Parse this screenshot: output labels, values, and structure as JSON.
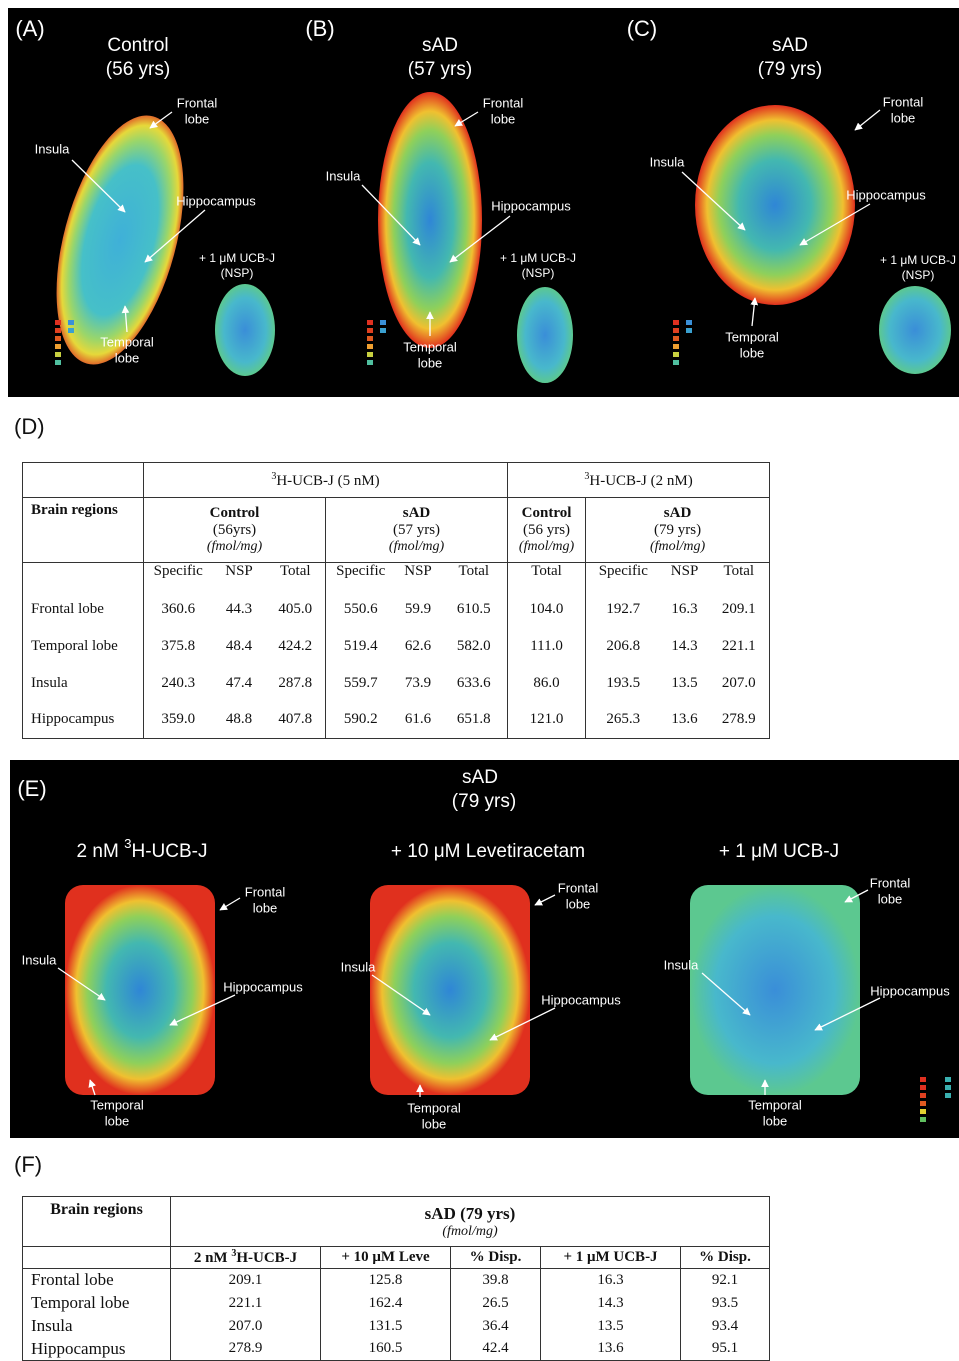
{
  "panels_top": [
    {
      "label": "(A)",
      "title": [
        "Control",
        "(56 yrs)"
      ],
      "frontal": [
        "Frontal",
        "lobe"
      ],
      "insula": "Insula",
      "hippocampus": "Hippocampus",
      "temporal": [
        "Temporal",
        "lobe"
      ],
      "nsp": [
        "+ 1 μM UCB-J",
        "(NSP)"
      ]
    },
    {
      "label": "(B)",
      "title": [
        "sAD",
        "(57 yrs)"
      ],
      "frontal": [
        "Frontal",
        "lobe"
      ],
      "insula": "Insula",
      "hippocampus": "Hippocampus",
      "temporal": [
        "Temporal",
        "lobe"
      ],
      "nsp": [
        "+ 1 μM UCB-J",
        "(NSP)"
      ]
    },
    {
      "label": "(C)",
      "title": [
        "sAD",
        "(79 yrs)"
      ],
      "frontal": [
        "Frontal",
        "lobe"
      ],
      "insula": "Insula",
      "hippocampus": "Hippocampus",
      "temporal": [
        "Temporal",
        "lobe"
      ],
      "nsp": [
        "+ 1 μM UCB-J",
        "(NSP)"
      ]
    }
  ],
  "panel_d": {
    "label": "(D)",
    "group_headers": [
      {
        "sup": "3",
        "text": "H-UCB-J (5 nM)"
      },
      {
        "sup": "3",
        "text": "H-UCB-J (2 nM)"
      }
    ],
    "row_header": "Brain regions",
    "subgroups": [
      {
        "name": "Control",
        "age": "(56yrs)",
        "unit": "(fmol/mg)"
      },
      {
        "name": "sAD",
        "age": "(57 yrs)",
        "unit": "(fmol/mg)"
      },
      {
        "name": "Control",
        "age": "(56 yrs)",
        "unit": "(fmol/mg)"
      },
      {
        "name": "sAD",
        "age": "(79 yrs)",
        "unit": "(fmol/mg)"
      }
    ],
    "columns": [
      "Specific",
      "NSP",
      "Total",
      "Specific",
      "NSP",
      "Total",
      "Total",
      "Specific",
      "NSP",
      "Total"
    ],
    "rows": [
      {
        "region": "Frontal lobe",
        "values": [
          "360.6",
          "44.3",
          "405.0",
          "550.6",
          "59.9",
          "610.5",
          "104.0",
          "192.7",
          "16.3",
          "209.1"
        ]
      },
      {
        "region": "Temporal lobe",
        "values": [
          "375.8",
          "48.4",
          "424.2",
          "519.4",
          "62.6",
          "582.0",
          "111.0",
          "206.8",
          "14.3",
          "221.1"
        ]
      },
      {
        "region": "Insula",
        "values": [
          "240.3",
          "47.4",
          "287.8",
          "559.7",
          "73.9",
          "633.6",
          "86.0",
          "193.5",
          "13.5",
          "207.0"
        ]
      },
      {
        "region": "Hippocampus",
        "values": [
          "359.0",
          "48.8",
          "407.8",
          "590.2",
          "61.6",
          "651.8",
          "121.0",
          "265.3",
          "13.6",
          "278.9"
        ]
      }
    ]
  },
  "panel_e": {
    "label": "(E)",
    "title": [
      "sAD",
      "(79 yrs)"
    ],
    "images": [
      {
        "subtitle": {
          "pre": "2 nM ",
          "sup": "3",
          "text": "H-UCB-J"
        },
        "frontal": [
          "Frontal",
          "lobe"
        ],
        "insula": "Insula",
        "hippocampus": "Hippocampus",
        "temporal": [
          "Temporal",
          "lobe"
        ]
      },
      {
        "subtitle": "+ 10 μM Levetiracetam",
        "frontal": [
          "Frontal",
          "lobe"
        ],
        "insula": "Insula",
        "hippocampus": "Hippocampus",
        "temporal": [
          "Temporal",
          "lobe"
        ]
      },
      {
        "subtitle": "+ 1 μM UCB-J",
        "frontal": [
          "Frontal",
          "lobe"
        ],
        "insula": "Insula",
        "hippocampus": "Hippocampus",
        "temporal": [
          "Temporal",
          "lobe"
        ]
      }
    ]
  },
  "panel_f": {
    "label": "(F)",
    "row_header": "Brain regions",
    "group": "sAD (79 yrs)",
    "unit": "(fmol/mg)",
    "columns": [
      {
        "pre": "2 nM ",
        "sup": "3",
        "text": "H-UCB-J"
      },
      "+ 10 μM Leve",
      "% Disp.",
      "+ 1 μM UCB-J",
      "% Disp."
    ],
    "rows": [
      {
        "region": "Frontal lobe",
        "values": [
          "209.1",
          "125.8",
          "39.8",
          "16.3",
          "92.1"
        ]
      },
      {
        "region": "Temporal lobe",
        "values": [
          "221.1",
          "162.4",
          "26.5",
          "14.3",
          "93.5"
        ]
      },
      {
        "region": "Insula",
        "values": [
          "207.0",
          "131.5",
          "36.4",
          "13.5",
          "93.4"
        ]
      },
      {
        "region": "Hippocampus",
        "values": [
          "278.9",
          "160.5",
          "42.4",
          "13.6",
          "95.1"
        ]
      }
    ]
  }
}
